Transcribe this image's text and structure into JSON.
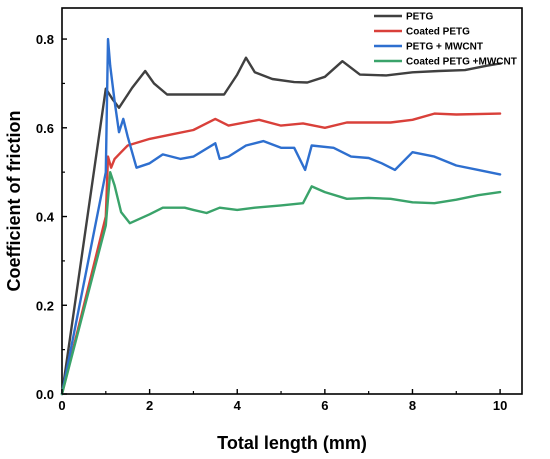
{
  "chart_data": {
    "type": "line",
    "title": "",
    "xlabel": "Total length (mm)",
    "ylabel": "Coefficient of friction",
    "xlim": [
      0,
      10.5
    ],
    "ylim": [
      0,
      0.87
    ],
    "xticks": [
      0,
      2,
      4,
      6,
      8,
      10
    ],
    "yticks": [
      0.0,
      0.2,
      0.4,
      0.6,
      0.8
    ],
    "xtick_labels": [
      "0",
      "2",
      "4",
      "6",
      "8",
      "10"
    ],
    "ytick_labels": [
      "0.0",
      "0.2",
      "0.4",
      "0.6",
      "0.8"
    ],
    "legend_position": "top-right",
    "grid": false,
    "series": [
      {
        "name": "PETG",
        "color": "#404040",
        "x": [
          0,
          1.0,
          1.15,
          1.3,
          1.6,
          1.9,
          2.1,
          2.4,
          3.0,
          3.7,
          4.0,
          4.2,
          4.4,
          4.8,
          5.3,
          5.6,
          6.0,
          6.4,
          6.8,
          7.4,
          8.0,
          8.6,
          9.2,
          9.7,
          10.0
        ],
        "y": [
          0,
          0.688,
          0.665,
          0.645,
          0.69,
          0.728,
          0.7,
          0.675,
          0.675,
          0.675,
          0.72,
          0.758,
          0.725,
          0.71,
          0.703,
          0.702,
          0.715,
          0.75,
          0.72,
          0.718,
          0.725,
          0.728,
          0.73,
          0.74,
          0.745
        ]
      },
      {
        "name": "Coated PETG",
        "color": "#d9403a",
        "x": [
          0,
          1.0,
          1.05,
          1.12,
          1.2,
          1.35,
          1.5,
          2.0,
          2.5,
          3.0,
          3.5,
          3.8,
          4.5,
          5.0,
          5.5,
          6.0,
          6.5,
          7.5,
          8.0,
          8.5,
          9.0,
          10.0
        ],
        "y": [
          0,
          0.4,
          0.535,
          0.51,
          0.53,
          0.545,
          0.56,
          0.575,
          0.585,
          0.595,
          0.62,
          0.605,
          0.618,
          0.605,
          0.61,
          0.6,
          0.612,
          0.612,
          0.618,
          0.632,
          0.63,
          0.632
        ]
      },
      {
        "name": "PETG + MWCNT",
        "color": "#2e6fcf",
        "x": [
          0,
          1.0,
          1.05,
          1.1,
          1.2,
          1.3,
          1.4,
          1.5,
          1.7,
          2.0,
          2.3,
          2.7,
          3.0,
          3.5,
          3.6,
          3.8,
          4.2,
          4.6,
          5.0,
          5.3,
          5.55,
          5.7,
          6.2,
          6.6,
          7.0,
          7.3,
          7.6,
          8.0,
          8.5,
          9.0,
          9.5,
          10.0
        ],
        "y": [
          0,
          0.5,
          0.8,
          0.74,
          0.66,
          0.59,
          0.62,
          0.58,
          0.51,
          0.52,
          0.54,
          0.53,
          0.535,
          0.565,
          0.53,
          0.535,
          0.56,
          0.57,
          0.555,
          0.555,
          0.505,
          0.56,
          0.555,
          0.535,
          0.532,
          0.52,
          0.505,
          0.545,
          0.535,
          0.515,
          0.505,
          0.495
        ]
      },
      {
        "name": "Coated PETG +MWCNT",
        "color": "#3aa36a",
        "x": [
          0,
          1.0,
          1.1,
          1.2,
          1.35,
          1.55,
          2.0,
          2.3,
          2.8,
          3.0,
          3.3,
          3.6,
          4.0,
          4.4,
          5.0,
          5.5,
          5.7,
          6.0,
          6.5,
          7.0,
          7.5,
          8.0,
          8.5,
          9.0,
          9.5,
          10.0
        ],
        "y": [
          0,
          0.38,
          0.5,
          0.47,
          0.41,
          0.385,
          0.405,
          0.42,
          0.42,
          0.415,
          0.408,
          0.42,
          0.415,
          0.42,
          0.425,
          0.43,
          0.468,
          0.455,
          0.44,
          0.442,
          0.44,
          0.432,
          0.43,
          0.438,
          0.448,
          0.455
        ]
      }
    ]
  }
}
